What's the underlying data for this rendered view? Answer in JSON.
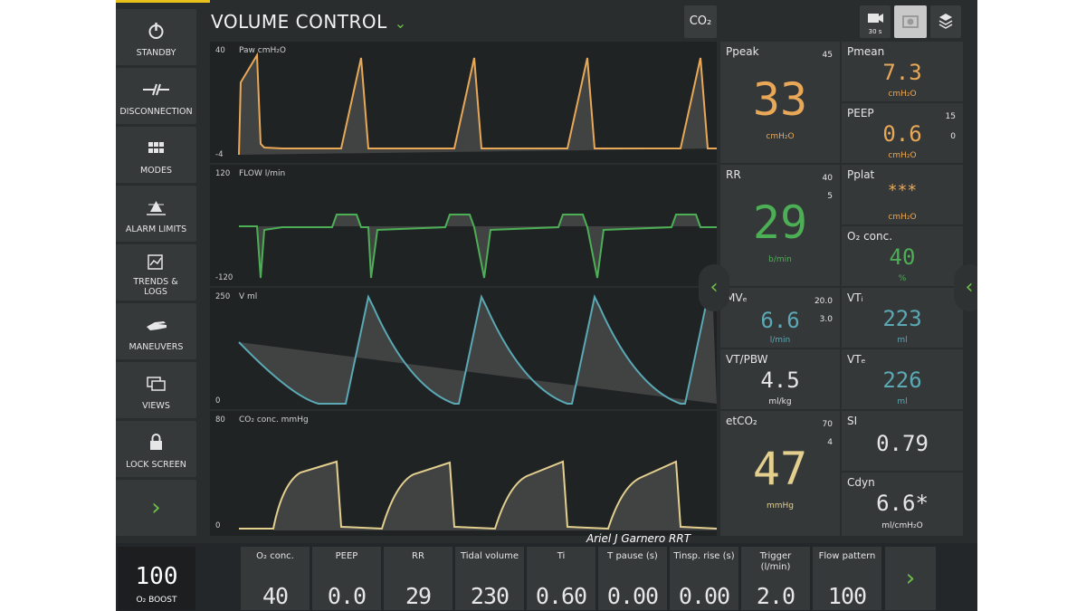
{
  "header": {
    "mode_title": "VOLUME CONTROL",
    "co2_button": "CO₂",
    "video_label": "30 s"
  },
  "sidebar": {
    "items": [
      {
        "label": "STANDBY",
        "icon": "power-icon"
      },
      {
        "label": "DISCONNECTION",
        "icon": "disconnection-icon"
      },
      {
        "label": "MODES",
        "icon": "grid-icon"
      },
      {
        "label": "ALARM LIMITS",
        "icon": "alarm-icon"
      },
      {
        "label": "TRENDS & LOGS",
        "icon": "trends-icon"
      },
      {
        "label": "MANEUVERS",
        "icon": "hand-icon"
      },
      {
        "label": "VIEWS",
        "icon": "views-icon"
      },
      {
        "label": "LOCK SCREEN",
        "icon": "lock-icon"
      }
    ]
  },
  "waveforms": {
    "pressure": {
      "label": "Paw cmH₂O",
      "top": "40",
      "bottom": "-4",
      "color": "#e8a857"
    },
    "flow": {
      "label": "FLOW l/min",
      "top": "120",
      "bottom": "-120",
      "color": "#4caf55"
    },
    "volume": {
      "label": "V ml",
      "top": "250",
      "bottom": "0",
      "color": "#5aa9b5"
    },
    "co2": {
      "label": "CO₂ conc. mmHg",
      "top": "80",
      "bottom": "0",
      "color": "#e3cf8e"
    }
  },
  "tiles": {
    "ppeak": {
      "name": "Ppeak",
      "limit": "45",
      "value": "33",
      "unit": "cmH₂O"
    },
    "rr": {
      "name": "RR",
      "limit_hi": "40",
      "limit_lo": "5",
      "value": "29",
      "unit": "b/min"
    },
    "mve": {
      "name": "MVₑ",
      "limit_hi": "20.0",
      "limit_lo": "3.0",
      "value": "6.6",
      "unit": "l/min"
    },
    "vtpbw": {
      "name": "VT/PBW",
      "value": "4.5",
      "unit": "ml/kg"
    },
    "etco2": {
      "name": "etCO₂",
      "limit_hi": "70",
      "limit_lo": "4",
      "value": "47",
      "unit": "mmHg"
    },
    "pmean": {
      "name": "Pmean",
      "value": "7.3",
      "unit": "cmH₂O"
    },
    "peep": {
      "name": "PEEP",
      "limit_hi": "15",
      "limit_lo": "0",
      "value": "0.6",
      "unit": "cmH₂O"
    },
    "pplat": {
      "name": "Pplat",
      "value": "***",
      "unit": "cmH₂O"
    },
    "o2": {
      "name": "O₂ conc.",
      "value": "40",
      "unit": "%"
    },
    "vti": {
      "name": "VTᵢ",
      "value": "223",
      "unit": "ml"
    },
    "vte": {
      "name": "VTₑ",
      "value": "226",
      "unit": "ml"
    },
    "si": {
      "name": "SI",
      "value": "0.79"
    },
    "cdyn": {
      "name": "Cdyn",
      "value": "6.6*",
      "unit": "ml/cmH₂O"
    }
  },
  "settings": {
    "boost": {
      "value": "100",
      "label": "O₂ BOOST"
    },
    "items": [
      {
        "name": "O₂ conc.",
        "value": "40"
      },
      {
        "name": "PEEP",
        "value": "0.0"
      },
      {
        "name": "RR",
        "value": "29"
      },
      {
        "name": "Tidal volume",
        "value": "230"
      },
      {
        "name": "Ti",
        "value": "0.60"
      },
      {
        "name": "T pause (s)",
        "value": "0.00"
      },
      {
        "name": "Tinsp. rise (s)",
        "value": "0.00"
      },
      {
        "name": "Trigger (l/min)",
        "value": "2.0"
      },
      {
        "name": "Flow pattern",
        "value": "100"
      }
    ]
  },
  "credit": "Ariel J Garnero RRT"
}
